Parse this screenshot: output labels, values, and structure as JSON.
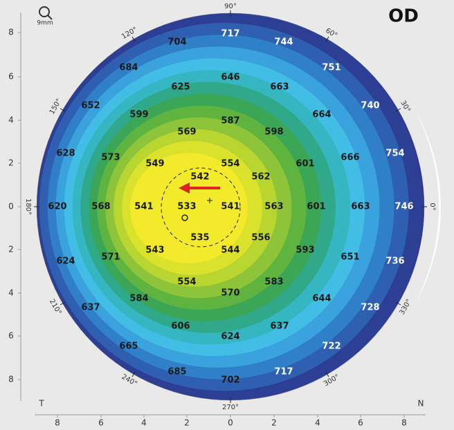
{
  "header": {
    "eye": "OD",
    "zoom": "9mm"
  },
  "axes": {
    "x_ticks": [
      "8",
      "6",
      "4",
      "2",
      "0",
      "2",
      "4",
      "6",
      "8"
    ],
    "y_ticks": [
      "8",
      "6",
      "4",
      "2",
      "0",
      "2",
      "4",
      "6",
      "8"
    ],
    "left": "T",
    "right": "N"
  },
  "angles": [
    "90°",
    "120°",
    "60°",
    "150°",
    "30°",
    "180°",
    "0°",
    "210°",
    "330°",
    "240°",
    "300°",
    "270°"
  ],
  "map": {
    "values": [
      704,
      717,
      744,
      684,
      751,
      646,
      625,
      663,
      652,
      740,
      599,
      587,
      664,
      569,
      598,
      628,
      573,
      666,
      754,
      549,
      554,
      601,
      542,
      562,
      620,
      568,
      541,
      533,
      541,
      563,
      601,
      663,
      746,
      535,
      556,
      543,
      544,
      593,
      624,
      571,
      651,
      736,
      554,
      583,
      584,
      570,
      644,
      637,
      728,
      606,
      637,
      624,
      665,
      722,
      685,
      702,
      717
    ]
  }
}
